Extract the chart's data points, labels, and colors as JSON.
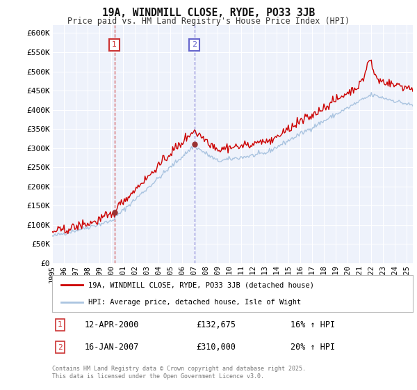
{
  "title": "19A, WINDMILL CLOSE, RYDE, PO33 3JB",
  "subtitle": "Price paid vs. HM Land Registry's House Price Index (HPI)",
  "ylim": [
    0,
    620000
  ],
  "yticks": [
    0,
    50000,
    100000,
    150000,
    200000,
    250000,
    300000,
    350000,
    400000,
    450000,
    500000,
    550000,
    600000
  ],
  "ytick_labels": [
    "£0",
    "£50K",
    "£100K",
    "£150K",
    "£200K",
    "£250K",
    "£300K",
    "£350K",
    "£400K",
    "£450K",
    "£500K",
    "£550K",
    "£600K"
  ],
  "background_color": "#ffffff",
  "plot_bg_color": "#eef2fb",
  "grid_color": "#ffffff",
  "hpi_color": "#aac4e0",
  "price_color": "#cc0000",
  "marker_color": "#993333",
  "annotation_box_color": "#cc3333",
  "vline1_color": "#cc3333",
  "vline2_color": "#6666cc",
  "vline1_x": 2000.27,
  "vline2_x": 2007.04,
  "marker1_x": 2000.27,
  "marker1_y": 132675,
  "marker2_x": 2007.04,
  "marker2_y": 310000,
  "legend_label_price": "19A, WINDMILL CLOSE, RYDE, PO33 3JB (detached house)",
  "legend_label_hpi": "HPI: Average price, detached house, Isle of Wight",
  "note1_num": "1",
  "note1_date": "12-APR-2000",
  "note1_price": "£132,675",
  "note1_hpi": "16% ↑ HPI",
  "note2_num": "2",
  "note2_date": "16-JAN-2007",
  "note2_price": "£310,000",
  "note2_hpi": "20% ↑ HPI",
  "copyright": "Contains HM Land Registry data © Crown copyright and database right 2025.\nThis data is licensed under the Open Government Licence v3.0.",
  "xmin": 1995,
  "xmax": 2025.5,
  "xtick_years": [
    1995,
    1996,
    1997,
    1998,
    1999,
    2000,
    2001,
    2002,
    2003,
    2004,
    2005,
    2006,
    2007,
    2008,
    2009,
    2010,
    2011,
    2012,
    2013,
    2014,
    2015,
    2016,
    2017,
    2018,
    2019,
    2020,
    2021,
    2022,
    2023,
    2024,
    2025
  ]
}
